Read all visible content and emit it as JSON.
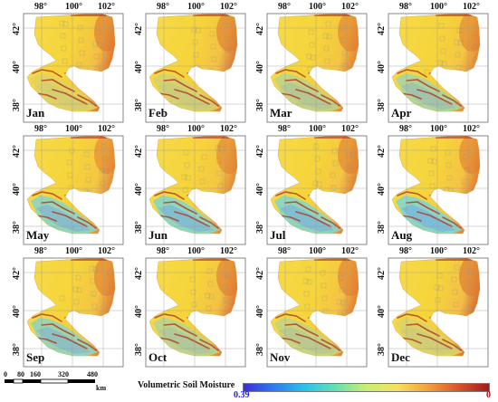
{
  "lon_ticks": [
    "98°",
    "100°",
    "102°"
  ],
  "lat_ticks": [
    "42°",
    "40°",
    "38°"
  ],
  "months": [
    "Jan",
    "Feb",
    "Mar",
    "Apr",
    "May",
    "Jun",
    "Jul",
    "Aug",
    "Sep",
    "Oct",
    "Nov",
    "Dec"
  ],
  "scale_bar": {
    "labels": [
      "0",
      "80",
      "160",
      "320",
      "480"
    ],
    "unit": "km"
  },
  "colorbar": {
    "title": "Volumetric Soil Moisture",
    "min_label": "0.39",
    "max_label": "0",
    "colors": [
      "#3a2fd6",
      "#2e7bf0",
      "#29c3e8",
      "#66e0b0",
      "#c8ee70",
      "#f5e060",
      "#f3a23a",
      "#d9532a",
      "#9e1d1d"
    ],
    "min_color": "#1a1aff",
    "max_color": "#b01010"
  },
  "palette": {
    "dry": "#f6d43a",
    "moist": "#f2b84a",
    "wet_blue": "#6fb6e6",
    "cyan": "#7ed6d2",
    "ridge": "#b3402a",
    "grid": "#9a9a9a"
  }
}
